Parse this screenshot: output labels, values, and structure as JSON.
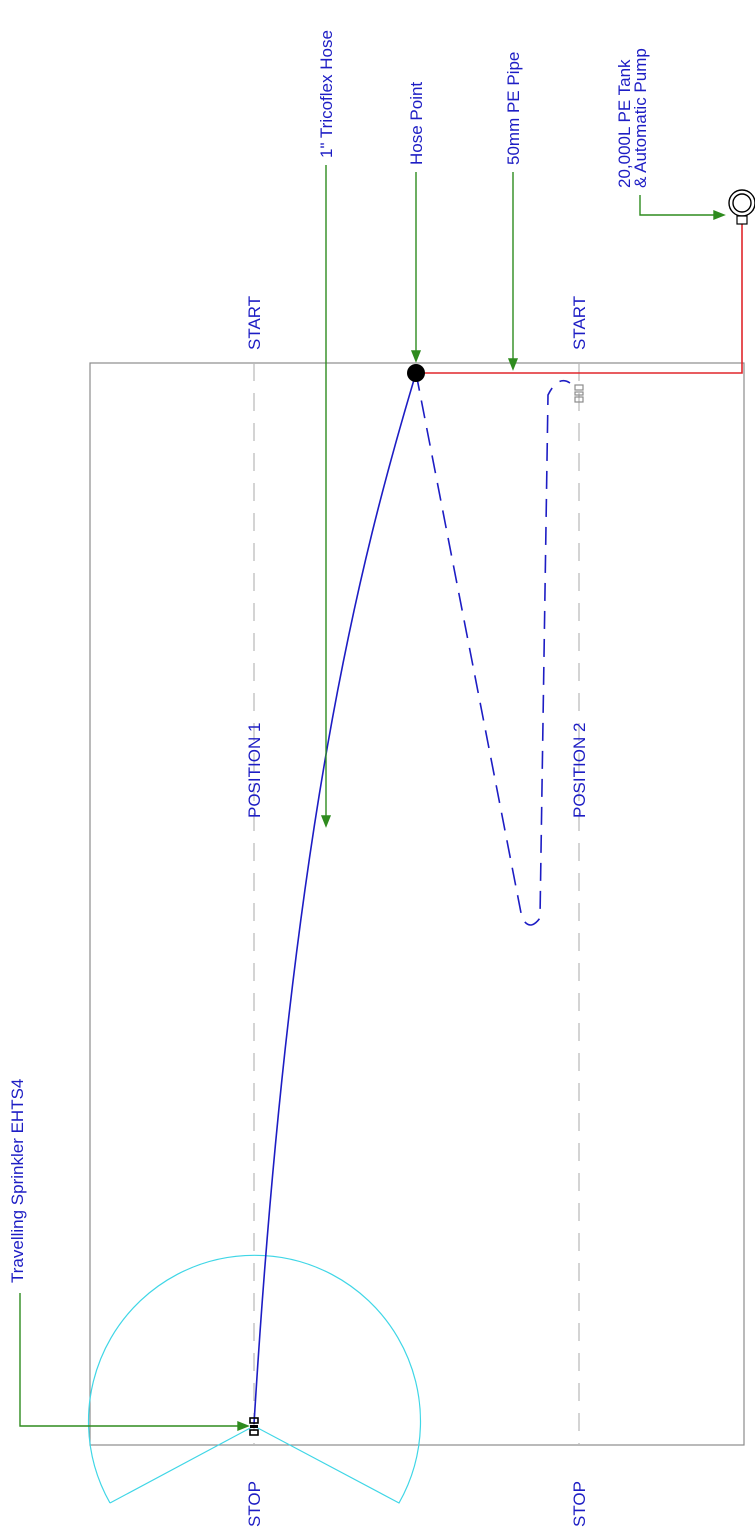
{
  "labels": {
    "sprinkler": "Travelling Sprinkler EHTS4",
    "hose": "1\" Tricoflex Hose",
    "hose_point": "Hose Point",
    "pe_pipe": "50mm PE Pipe",
    "tank_line1": "20,000L PE Tank",
    "tank_line2": "& Automatic Pump",
    "position1": "POSITION 1",
    "position2": "POSITION 2",
    "start1": "START",
    "start2": "START",
    "stop1": "STOP",
    "stop2": "STOP"
  },
  "colors": {
    "text": "#1d1dc4",
    "leader": "#2e8b1e",
    "pipe": "#e0262b",
    "hose": "#1d1dc4",
    "spray": "#3fd6e6",
    "field": "#8c8c8c",
    "lane": "#b8b8b8"
  }
}
